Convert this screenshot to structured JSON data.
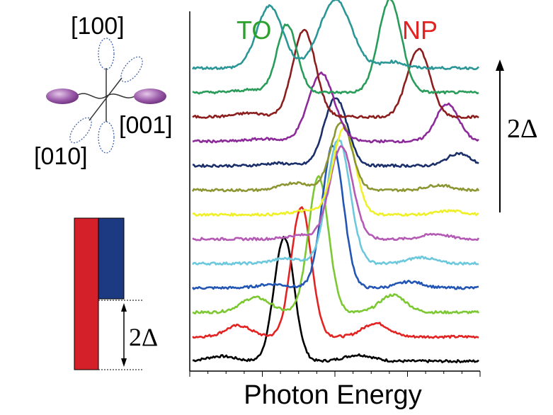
{
  "chart_data": {
    "type": "line",
    "xlabel": "Photon Energy",
    "ylabel": "",
    "x_ticks_labeled": false,
    "y_axis_shown": false,
    "peak_labels": [
      {
        "text": "TO",
        "color": "#2ca02c"
      },
      {
        "text": "NP",
        "color": "#e32222"
      }
    ],
    "arrow_label": "2Δ",
    "series": [
      {
        "color": "#000000",
        "offset": 0,
        "peaks": [
          {
            "x": 0.32,
            "h": 1.0,
            "w": 0.035
          },
          {
            "x": 0.1,
            "h": 0.04,
            "w": 0.05
          },
          {
            "x": 0.58,
            "h": 0.05,
            "w": 0.05
          }
        ]
      },
      {
        "color": "#e32222",
        "offset": 1,
        "peaks": [
          {
            "x": 0.38,
            "h": 1.05,
            "w": 0.035
          },
          {
            "x": 0.16,
            "h": 0.09,
            "w": 0.045
          },
          {
            "x": 0.64,
            "h": 0.11,
            "w": 0.045
          }
        ]
      },
      {
        "color": "#7cc832",
        "offset": 2,
        "peaks": [
          {
            "x": 0.44,
            "h": 1.1,
            "w": 0.035
          },
          {
            "x": 0.22,
            "h": 0.12,
            "w": 0.05
          },
          {
            "x": 0.7,
            "h": 0.14,
            "w": 0.045
          }
        ]
      },
      {
        "color": "#2255b4",
        "offset": 3,
        "peaks": [
          {
            "x": 0.49,
            "h": 1.15,
            "w": 0.037
          },
          {
            "x": 0.28,
            "h": 0.03,
            "w": 0.05
          },
          {
            "x": 0.76,
            "h": 0.05,
            "w": 0.045
          }
        ]
      },
      {
        "color": "#6cc8dc",
        "offset": 4,
        "peaks": [
          {
            "x": 0.51,
            "h": 1.0,
            "w": 0.04
          },
          {
            "x": 0.33,
            "h": 0.04,
            "w": 0.05
          },
          {
            "x": 0.8,
            "h": 0.05,
            "w": 0.045
          }
        ]
      },
      {
        "color": "#b45ab4",
        "offset": 5,
        "peaks": [
          {
            "x": 0.52,
            "h": 0.75,
            "w": 0.04
          },
          {
            "x": 0.38,
            "h": 0.03,
            "w": 0.05
          },
          {
            "x": 0.85,
            "h": 0.04,
            "w": 0.045
          }
        ]
      },
      {
        "color": "#f0f02a",
        "offset": 6,
        "peaks": [
          {
            "x": 0.53,
            "h": 0.7,
            "w": 0.038
          },
          {
            "x": 0.4,
            "h": 0.03,
            "w": 0.05
          },
          {
            "x": 0.9,
            "h": 0.03,
            "w": 0.045
          }
        ]
      },
      {
        "color": "#8c9632",
        "offset": 7,
        "peaks": [
          {
            "x": 0.52,
            "h": 0.55,
            "w": 0.037
          },
          {
            "x": 0.36,
            "h": 0.06,
            "w": 0.05
          },
          {
            "x": 0.86,
            "h": 0.04,
            "w": 0.045
          }
        ]
      },
      {
        "color": "#1a2e6a",
        "offset": 8,
        "peaks": [
          {
            "x": 0.5,
            "h": 0.55,
            "w": 0.04
          },
          {
            "x": 0.3,
            "h": 0.02,
            "w": 0.05
          },
          {
            "x": 0.93,
            "h": 0.1,
            "w": 0.04
          }
        ]
      },
      {
        "color": "#8c2a9a",
        "offset": 9,
        "peaks": [
          {
            "x": 0.45,
            "h": 0.55,
            "w": 0.045
          },
          {
            "x": 0.25,
            "h": 0.02,
            "w": 0.05
          },
          {
            "x": 0.89,
            "h": 0.3,
            "w": 0.04
          }
        ]
      },
      {
        "color": "#8c1e1e",
        "offset": 10,
        "peaks": [
          {
            "x": 0.39,
            "h": 0.7,
            "w": 0.04
          },
          {
            "x": 0.2,
            "h": 0.03,
            "w": 0.05
          },
          {
            "x": 0.79,
            "h": 0.55,
            "w": 0.04
          }
        ]
      },
      {
        "color": "#2a9c5a",
        "offset": 11,
        "peaks": [
          {
            "x": 0.33,
            "h": 0.55,
            "w": 0.035
          },
          {
            "x": 0.2,
            "h": 0.02,
            "w": 0.05
          },
          {
            "x": 0.69,
            "h": 0.75,
            "w": 0.04
          }
        ]
      },
      {
        "color": "#2a9696",
        "offset": 12,
        "peaks": [
          {
            "x": 0.27,
            "h": 0.5,
            "w": 0.045
          },
          {
            "x": 0.5,
            "h": 0.55,
            "w": 0.055
          },
          {
            "x": 0.7,
            "h": 0.05,
            "w": 0.04
          }
        ]
      }
    ]
  },
  "inset_top": {
    "labels": [
      "[100]",
      "[001]",
      "[010]"
    ]
  },
  "inset_bottom": {
    "bar_colors": {
      "left": "#d42028",
      "right": "#1c3a82"
    },
    "gap_label": "2Δ"
  }
}
